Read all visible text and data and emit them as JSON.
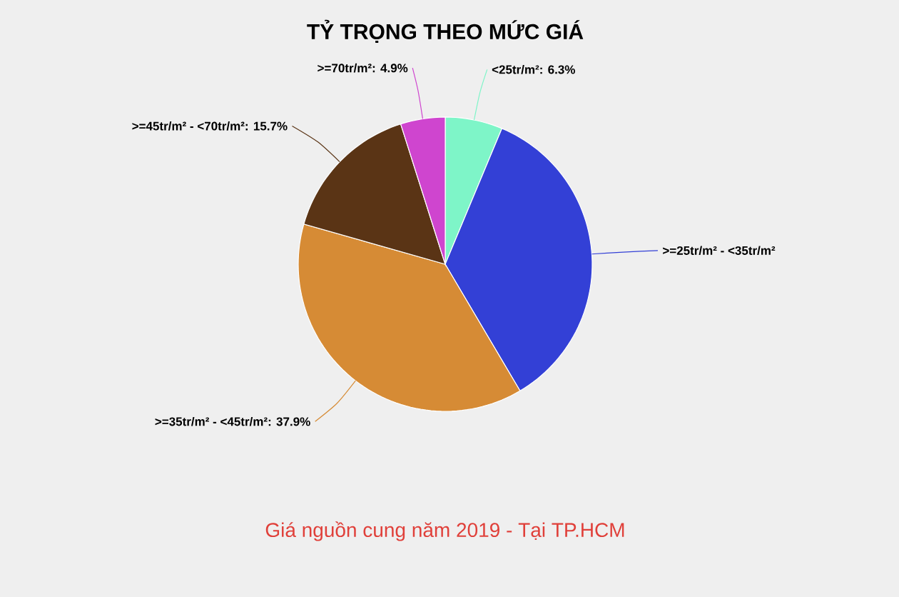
{
  "chart_data": {
    "type": "pie",
    "title": "TỶ TRỌNG THEO MỨC GIÁ",
    "categories": [
      "<25tr/m²",
      ">=25tr/m² - <35tr/m²",
      ">=35tr/m² - <45tr/m²",
      ">=45tr/m² - <70tr/m²",
      ">=70tr/m²"
    ],
    "values": [
      6.3,
      35.2,
      37.9,
      15.7,
      4.9
    ],
    "value_labels": [
      ": 6.3%",
      null,
      ": 37.9%",
      ": 15.7%",
      ": 4.9%"
    ],
    "colors": [
      "#7ef5c8",
      "#3340d6",
      "#d68b35",
      "#5a3415",
      "#cf45cf"
    ],
    "annotations": [
      "Giá nguồn cung năm 2019 - Tại TP.HCM"
    ]
  }
}
